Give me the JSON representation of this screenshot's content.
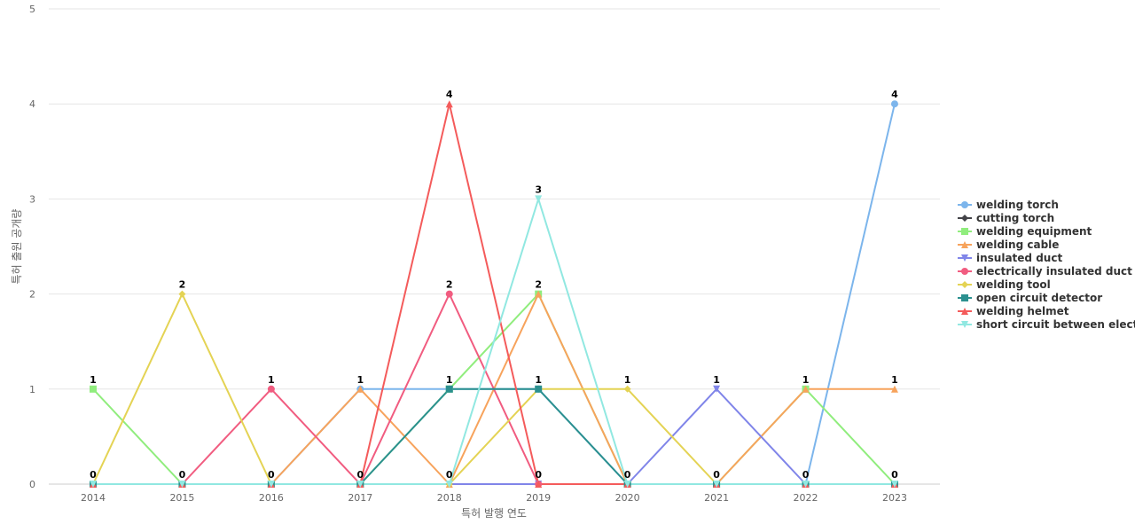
{
  "chart_data": {
    "type": "line",
    "title": "",
    "xlabel": "특허 발행 연도",
    "ylabel": "특허 출원 공개량",
    "categories": [
      "2014",
      "2015",
      "2016",
      "2017",
      "2018",
      "2019",
      "2020",
      "2021",
      "2022",
      "2023"
    ],
    "ylim": [
      0,
      5
    ],
    "yticks": [
      "0",
      "1",
      "2",
      "3",
      "4",
      "5"
    ],
    "grid": true,
    "legend_position": "right",
    "series": [
      {
        "name": "welding torch",
        "color": "#7cb5ec",
        "marker": "circle",
        "values": [
          0,
          0,
          0,
          1,
          1,
          1,
          0,
          0,
          0,
          4
        ]
      },
      {
        "name": "cutting torch",
        "color": "#434348",
        "marker": "diamond",
        "values": [
          0,
          0,
          0,
          0,
          0,
          0,
          0,
          0,
          0,
          0
        ]
      },
      {
        "name": "welding equipment",
        "color": "#90ed7d",
        "marker": "square",
        "values": [
          1,
          0,
          0,
          0,
          1,
          2,
          0,
          0,
          1,
          0
        ]
      },
      {
        "name": "welding cable",
        "color": "#f7a35c",
        "marker": "triangle",
        "values": [
          0,
          0,
          0,
          1,
          0,
          2,
          0,
          0,
          1,
          1
        ]
      },
      {
        "name": "insulated duct",
        "color": "#8085e9",
        "marker": "triangle-down",
        "values": [
          0,
          0,
          0,
          0,
          0,
          0,
          0,
          1,
          0,
          0
        ]
      },
      {
        "name": "electrically insulated duct",
        "color": "#f15c80",
        "marker": "circle",
        "values": [
          0,
          0,
          1,
          0,
          2,
          0,
          0,
          0,
          0,
          0
        ]
      },
      {
        "name": "welding tool",
        "color": "#e4d354",
        "marker": "diamond",
        "values": [
          0,
          2,
          0,
          0,
          0,
          1,
          1,
          0,
          0,
          0
        ]
      },
      {
        "name": "open circuit detector",
        "color": "#2b908f",
        "marker": "square",
        "values": [
          0,
          0,
          0,
          0,
          1,
          1,
          0,
          0,
          0,
          0
        ]
      },
      {
        "name": "welding helmet",
        "color": "#f45b5b",
        "marker": "triangle",
        "values": [
          0,
          0,
          0,
          0,
          4,
          0,
          0,
          0,
          0,
          0
        ]
      },
      {
        "name": "short circuit between elect...",
        "color": "#91e8e1",
        "marker": "triangle-down",
        "values": [
          0,
          0,
          0,
          0,
          0,
          3,
          0,
          0,
          0,
          0
        ]
      }
    ],
    "data_labels": [
      {
        "x": "2014",
        "y": 1,
        "text": "1"
      },
      {
        "x": "2014",
        "y": 0,
        "text": "0"
      },
      {
        "x": "2015",
        "y": 2,
        "text": "2"
      },
      {
        "x": "2015",
        "y": 0,
        "text": "0"
      },
      {
        "x": "2016",
        "y": 1,
        "text": "1"
      },
      {
        "x": "2016",
        "y": 0,
        "text": "0"
      },
      {
        "x": "2017",
        "y": 1,
        "text": "1"
      },
      {
        "x": "2017",
        "y": 0,
        "text": "0"
      },
      {
        "x": "2018",
        "y": 4,
        "text": "4"
      },
      {
        "x": "2018",
        "y": 2,
        "text": "2"
      },
      {
        "x": "2018",
        "y": 1,
        "text": "1"
      },
      {
        "x": "2018",
        "y": 0,
        "text": "0"
      },
      {
        "x": "2019",
        "y": 3,
        "text": "3"
      },
      {
        "x": "2019",
        "y": 2,
        "text": "2"
      },
      {
        "x": "2019",
        "y": 1,
        "text": "1"
      },
      {
        "x": "2019",
        "y": 0,
        "text": "0"
      },
      {
        "x": "2020",
        "y": 1,
        "text": "1"
      },
      {
        "x": "2020",
        "y": 0,
        "text": "0"
      },
      {
        "x": "2021",
        "y": 1,
        "text": "1"
      },
      {
        "x": "2021",
        "y": 0,
        "text": "0"
      },
      {
        "x": "2022",
        "y": 1,
        "text": "1"
      },
      {
        "x": "2022",
        "y": 0,
        "text": "0"
      },
      {
        "x": "2023",
        "y": 4,
        "text": "4"
      },
      {
        "x": "2023",
        "y": 1,
        "text": "1"
      },
      {
        "x": "2023",
        "y": 0,
        "text": "0"
      }
    ]
  }
}
